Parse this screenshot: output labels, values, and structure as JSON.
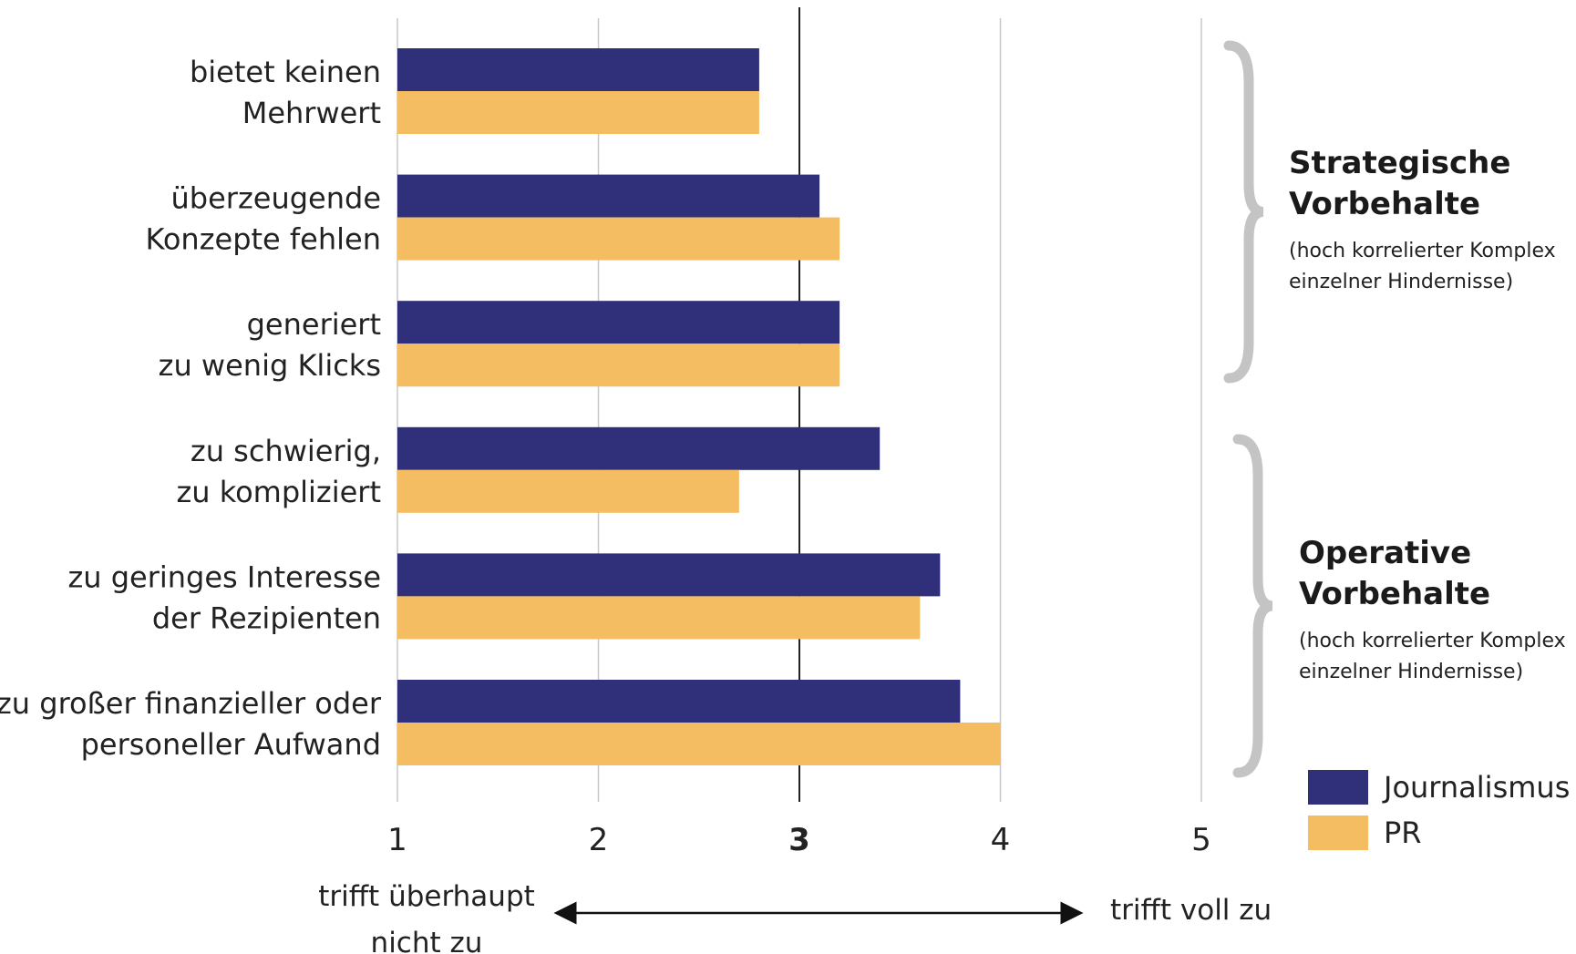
{
  "chart_data": {
    "type": "bar",
    "orientation": "horizontal",
    "categories": [
      [
        "bietet keinen",
        "Mehrwert"
      ],
      [
        "überzeugende",
        "Konzepte fehlen"
      ],
      [
        "generiert",
        "zu wenig Klicks"
      ],
      [
        "zu schwierig,",
        "zu kompliziert"
      ],
      [
        "zu geringes Interesse",
        "der Rezipienten"
      ],
      [
        "zu großer finanzieller oder",
        "personeller Aufwand"
      ]
    ],
    "series": [
      {
        "name": "Journalismus",
        "color": "#30307a",
        "values": [
          2.8,
          3.1,
          3.2,
          3.4,
          3.7,
          3.8
        ]
      },
      {
        "name": "PR",
        "color": "#f4bd62",
        "values": [
          2.8,
          3.2,
          3.2,
          2.7,
          3.6,
          4.0
        ]
      }
    ],
    "xlim": [
      1,
      5
    ],
    "xticks": [
      "1",
      "2",
      "3",
      "4",
      "5"
    ],
    "reference_line": 3,
    "grid": true,
    "legend_position": "bottom-right",
    "scale_labels": {
      "low": [
        "trifft überhaupt",
        "nicht zu"
      ],
      "high": "trifft voll zu"
    },
    "groups": [
      {
        "title": [
          "Strategische",
          "Vorbehalte"
        ],
        "note": [
          "(hoch korrelierter Komplex",
          "einzelner Hindernisse)"
        ],
        "categories": [
          0,
          1,
          2
        ]
      },
      {
        "title": [
          "Operative",
          "Vorbehalte"
        ],
        "note": [
          "(hoch korrelierter Komplex",
          "einzelner Hindernisse)"
        ],
        "categories": [
          3,
          4,
          5
        ]
      }
    ],
    "colors": {
      "grid": "#c8c8c8",
      "reference": "#222222",
      "brace": "#c4c4c4"
    }
  }
}
